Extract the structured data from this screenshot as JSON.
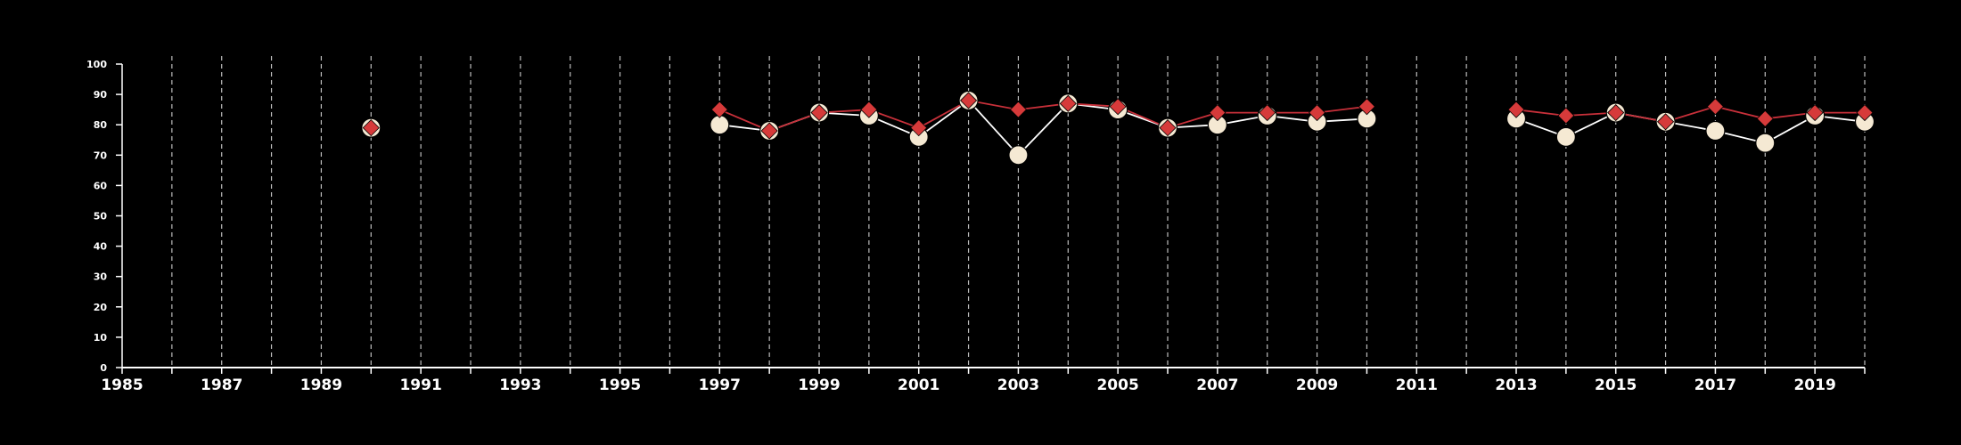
{
  "chart_data": {
    "type": "line",
    "title": "",
    "xlabel": "",
    "ylabel": "",
    "xlim": [
      1985,
      2020
    ],
    "ylim": [
      0,
      100
    ],
    "x_ticks": [
      1985,
      1987,
      1989,
      1991,
      1993,
      1995,
      1997,
      1999,
      2001,
      2003,
      2005,
      2007,
      2009,
      2011,
      2013,
      2015,
      2017,
      2019
    ],
    "y_ticks": [
      0,
      10,
      20,
      30,
      40,
      50,
      60,
      70,
      80,
      90,
      100
    ],
    "x_tick_labels": [
      "1985",
      "1987",
      "1989",
      "1991",
      "1993",
      "1995",
      "1997",
      "1999",
      "2001",
      "2003",
      "2005",
      "2007",
      "2009",
      "2011",
      "2013",
      "2015",
      "2017",
      "2019"
    ],
    "y_tick_labels": [
      "0",
      "10",
      "20",
      "30",
      "40",
      "50",
      "60",
      "70",
      "80",
      "90",
      "100"
    ],
    "grid": "vertical dashed",
    "background": "#000000",
    "series": [
      {
        "marker": "circle",
        "color": "#f5e9d3",
        "line_color": "#ffffff",
        "points": [
          [
            1990,
            79
          ],
          [
            1997,
            80
          ],
          [
            1998,
            78
          ],
          [
            1999,
            84
          ],
          [
            2000,
            83
          ],
          [
            2001,
            76
          ],
          [
            2002,
            88
          ],
          [
            2003,
            70
          ],
          [
            2004,
            87
          ],
          [
            2005,
            85
          ],
          [
            2006,
            79
          ],
          [
            2007,
            80
          ],
          [
            2008,
            83
          ],
          [
            2009,
            81
          ],
          [
            2010,
            82
          ],
          [
            2013,
            82
          ],
          [
            2014,
            76
          ],
          [
            2015,
            84
          ],
          [
            2016,
            81
          ],
          [
            2017,
            78
          ],
          [
            2018,
            74
          ],
          [
            2019,
            83
          ],
          [
            2020,
            81
          ]
        ]
      },
      {
        "marker": "diamond",
        "color": "#d63a3a",
        "line_color": "#c8303a",
        "points": [
          [
            1990,
            79
          ],
          [
            1997,
            85
          ],
          [
            1998,
            78
          ],
          [
            1999,
            84
          ],
          [
            2000,
            85
          ],
          [
            2001,
            79
          ],
          [
            2002,
            88
          ],
          [
            2003,
            85
          ],
          [
            2004,
            87
          ],
          [
            2005,
            86
          ],
          [
            2006,
            79
          ],
          [
            2007,
            84
          ],
          [
            2008,
            84
          ],
          [
            2009,
            84
          ],
          [
            2010,
            86
          ],
          [
            2013,
            85
          ],
          [
            2014,
            83
          ],
          [
            2015,
            84
          ],
          [
            2016,
            81
          ],
          [
            2017,
            86
          ],
          [
            2018,
            82
          ],
          [
            2019,
            84
          ],
          [
            2020,
            84
          ]
        ]
      }
    ]
  }
}
